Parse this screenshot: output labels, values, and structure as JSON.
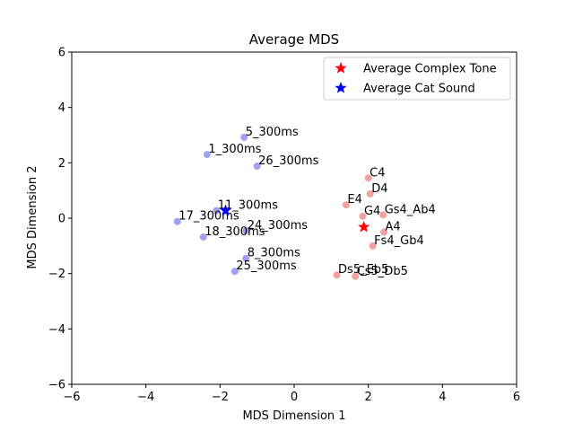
{
  "chart_data": {
    "type": "scatter",
    "title": "Average MDS",
    "xlabel": "MDS Dimension 1",
    "ylabel": "MDS Dimension 2",
    "xlim": [
      -6,
      6
    ],
    "ylim": [
      -6,
      6
    ],
    "xticks": [
      -6,
      -4,
      -2,
      0,
      2,
      4,
      6
    ],
    "yticks": [
      -6,
      -4,
      -2,
      0,
      2,
      4,
      6
    ],
    "grid": false,
    "legend_position": "top-right",
    "legend": [
      {
        "label": "Average Complex Tone",
        "color": "#ff0000",
        "marker": "star"
      },
      {
        "label": "Average Cat Sound",
        "color": "#0000ff",
        "marker": "star"
      }
    ],
    "series": [
      {
        "color": "#f08080",
        "points": [
          {
            "label": "C4",
            "x": 2.0,
            "y": 1.45
          },
          {
            "label": "D4",
            "x": 2.05,
            "y": 0.88
          },
          {
            "label": "E4",
            "x": 1.4,
            "y": 0.48
          },
          {
            "label": "G4",
            "x": 1.85,
            "y": 0.07
          },
          {
            "label": "Gs4_Ab4",
            "x": 2.4,
            "y": 0.12
          },
          {
            "label": "A4",
            "x": 2.42,
            "y": -0.5
          },
          {
            "label": "Fs4_Gb4",
            "x": 2.12,
            "y": -1.0
          },
          {
            "label": "Ds5_Eb5",
            "x": 1.15,
            "y": -2.05
          },
          {
            "label": "Cs5_Db5",
            "x": 1.65,
            "y": -2.1
          }
        ]
      },
      {
        "color": "#8080f0",
        "points": [
          {
            "label": "5_300ms",
            "x": -1.35,
            "y": 2.92
          },
          {
            "label": "1_300ms",
            "x": -2.35,
            "y": 2.3
          },
          {
            "label": "26_300ms",
            "x": -1.0,
            "y": 1.88
          },
          {
            "label": "11_300ms",
            "x": -2.1,
            "y": 0.27
          },
          {
            "label": "17_300ms",
            "x": -3.15,
            "y": -0.12
          },
          {
            "label": "24_300ms",
            "x": -1.3,
            "y": -0.45
          },
          {
            "label": "18_300ms",
            "x": -2.45,
            "y": -0.68
          },
          {
            "label": "8_300ms",
            "x": -1.3,
            "y": -1.45
          },
          {
            "label": "25_300ms",
            "x": -1.6,
            "y": -1.92
          }
        ]
      }
    ],
    "averages": [
      {
        "name": "Average Complex Tone",
        "x": 1.88,
        "y": -0.32,
        "color": "#ff0000"
      },
      {
        "name": "Average Cat Sound",
        "x": -1.85,
        "y": 0.28,
        "color": "#0000ff"
      }
    ]
  }
}
